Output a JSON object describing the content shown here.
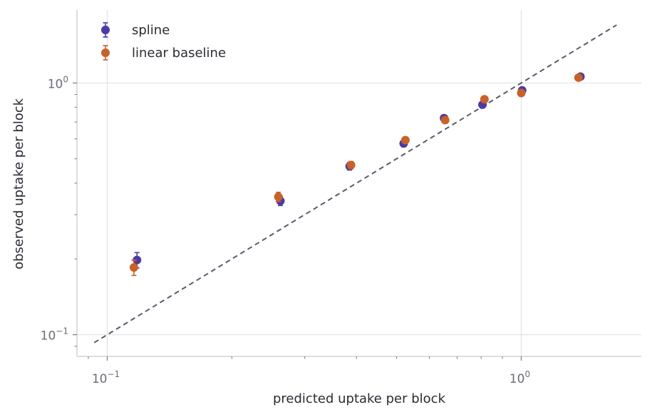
{
  "chart_data": {
    "type": "scatter",
    "xlabel": "predicted uptake per block",
    "ylabel": "observed uptake per block",
    "xscale": "log",
    "yscale": "log",
    "xlim": [
      0.0845,
      1.95
    ],
    "ylim": [
      0.082,
      1.95
    ],
    "xticks": [
      {
        "value": 0.1,
        "base": "10",
        "exp": "−1"
      },
      {
        "value": 1,
        "base": "10",
        "exp": "0"
      }
    ],
    "yticks": [
      {
        "value": 0.1,
        "base": "10",
        "exp": "−1"
      },
      {
        "value": 1,
        "base": "10",
        "exp": "0"
      }
    ],
    "grid": true,
    "legend_position": "top-left",
    "reference_line": {
      "style": "dashed",
      "color": "#5a5a6e",
      "from": [
        0.093,
        0.093
      ],
      "to": [
        1.7,
        1.7
      ]
    },
    "series": [
      {
        "name": "spline",
        "color": "#4b3aa5",
        "points": [
          {
            "x": 0.118,
            "y": 0.198,
            "err": 0.014
          },
          {
            "x": 0.262,
            "y": 0.34,
            "err": 0.014
          },
          {
            "x": 0.385,
            "y": 0.467,
            "err": 0.016
          },
          {
            "x": 0.52,
            "y": 0.575,
            "err": 0.017
          },
          {
            "x": 0.651,
            "y": 0.725,
            "err": 0.018
          },
          {
            "x": 0.806,
            "y": 0.82,
            "err": 0.017
          },
          {
            "x": 1.005,
            "y": 0.935,
            "err": 0.017
          },
          {
            "x": 1.39,
            "y": 1.06,
            "err": 0.017
          }
        ]
      },
      {
        "name": "linear baseline",
        "color": "#c8612a",
        "points": [
          {
            "x": 0.116,
            "y": 0.185,
            "err": 0.013
          },
          {
            "x": 0.259,
            "y": 0.353,
            "err": 0.015
          },
          {
            "x": 0.388,
            "y": 0.472,
            "err": 0.016
          },
          {
            "x": 0.525,
            "y": 0.593,
            "err": 0.017
          },
          {
            "x": 0.655,
            "y": 0.712,
            "err": 0.017
          },
          {
            "x": 0.815,
            "y": 0.862,
            "err": 0.017
          },
          {
            "x": 1.0,
            "y": 0.912,
            "err": 0.016
          },
          {
            "x": 1.375,
            "y": 1.05,
            "err": 0.017
          }
        ]
      }
    ]
  }
}
